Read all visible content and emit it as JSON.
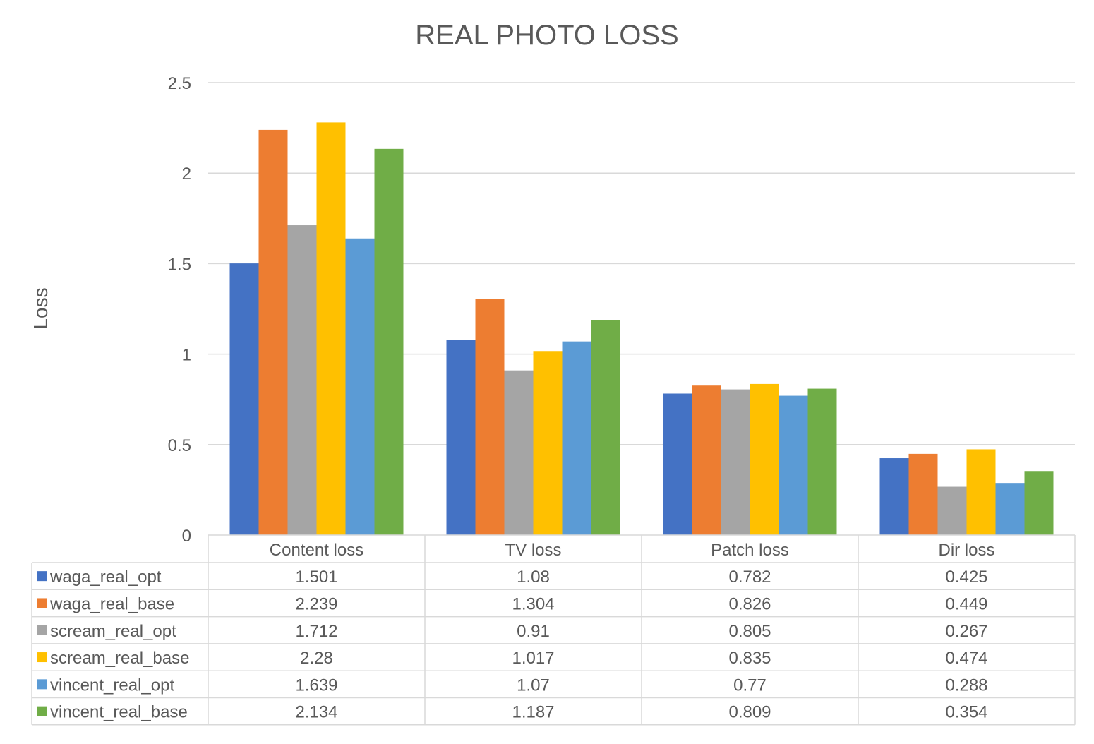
{
  "chart_data": {
    "type": "bar",
    "title": "REAL PHOTO LOSS",
    "xlabel": "",
    "ylabel": "Loss",
    "ylim": [
      0,
      2.5
    ],
    "yticks": [
      0,
      0.5,
      1,
      1.5,
      2,
      2.5
    ],
    "grid": true,
    "legend": "data-table",
    "categories": [
      "Content loss",
      "TV loss",
      "Patch loss",
      "Dir loss"
    ],
    "series": [
      {
        "name": "waga_real_opt",
        "color": "#4472C4",
        "values": [
          1.501,
          1.08,
          0.782,
          0.425
        ],
        "labels": [
          "1.501",
          "1.08",
          "0.782",
          "0.425"
        ]
      },
      {
        "name": "waga_real_base",
        "color": "#ED7D31",
        "values": [
          2.239,
          1.304,
          0.826,
          0.449
        ],
        "labels": [
          "2.239",
          "1.304",
          "0.826",
          "0.449"
        ]
      },
      {
        "name": "scream_real_opt",
        "color": "#A5A5A5",
        "values": [
          1.712,
          0.91,
          0.805,
          0.267
        ],
        "labels": [
          "1.712",
          "0.91",
          "0.805",
          "0.267"
        ]
      },
      {
        "name": "scream_real_base",
        "color": "#FFC000",
        "values": [
          2.28,
          1.017,
          0.835,
          0.474
        ],
        "labels": [
          "2.28",
          "1.017",
          "0.835",
          "0.474"
        ]
      },
      {
        "name": "vincent_real_opt",
        "color": "#5B9BD5",
        "values": [
          1.639,
          1.07,
          0.77,
          0.288
        ],
        "labels": [
          "1.639",
          "1.07",
          "0.77",
          "0.288"
        ]
      },
      {
        "name": "vincent_real_base",
        "color": "#70AD47",
        "values": [
          2.134,
          1.187,
          0.809,
          0.354
        ],
        "labels": [
          "2.134",
          "1.187",
          "0.809",
          "0.354"
        ]
      }
    ]
  }
}
